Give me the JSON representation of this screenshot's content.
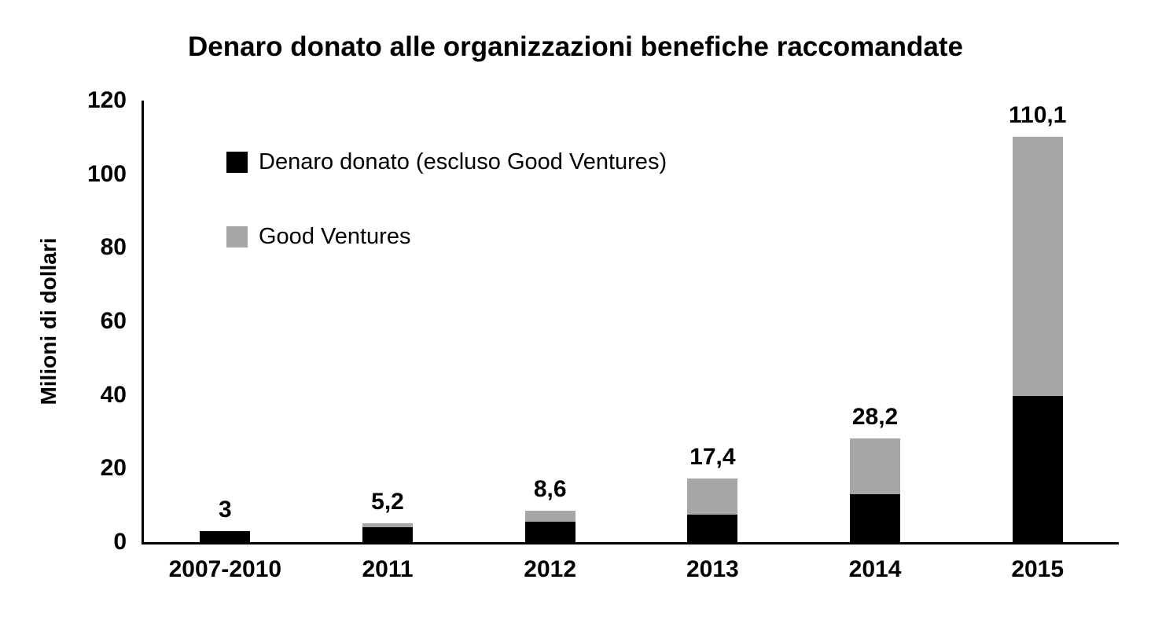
{
  "chart_data": {
    "type": "bar",
    "stacked": true,
    "title": "Denaro donato alle organizzazioni benefiche raccomandate",
    "ylabel": "Milioni di dollari",
    "xlabel": "",
    "categories": [
      "2007-2010",
      "2011",
      "2012",
      "2013",
      "2014",
      "2015"
    ],
    "series": [
      {
        "name": "Denaro donato (escluso Good Ventures)",
        "color": "#000000",
        "values": [
          3,
          4.0,
          5.5,
          7.5,
          13.0,
          39.7
        ]
      },
      {
        "name": "Good Ventures",
        "color": "#a6a6a6",
        "values": [
          0,
          1.2,
          3.1,
          9.9,
          15.2,
          70.4
        ]
      }
    ],
    "totals": [
      3,
      5.2,
      8.6,
      17.4,
      28.2,
      110.1
    ],
    "total_labels": [
      "3",
      "5,2",
      "8,6",
      "17,4",
      "28,2",
      "110,1"
    ],
    "ylim": [
      0,
      120
    ],
    "yticks": [
      0,
      20,
      40,
      60,
      80,
      100,
      120
    ],
    "grid": false,
    "legend_position": "upper-left-inside",
    "colors": {
      "bar_primary": "#000000",
      "bar_secondary": "#a6a6a6",
      "axis": "#000000",
      "text": "#000000",
      "background": "#ffffff"
    }
  }
}
